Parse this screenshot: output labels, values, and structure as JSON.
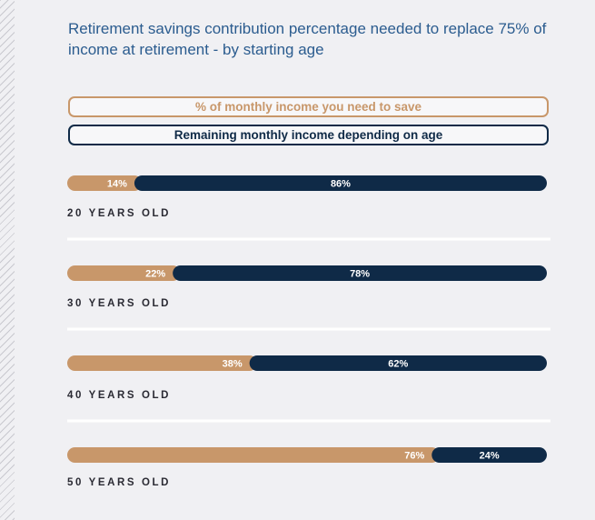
{
  "chart_data": {
    "type": "bar",
    "orientation": "horizontal-stacked-100",
    "title": "Retirement savings contribution percentage needed to replace 75% of income at retirement - by starting age",
    "categories": [
      "20 YEARS OLD",
      "30 YEARS OLD",
      "40 YEARS OLD",
      "50 YEARS OLD"
    ],
    "series": [
      {
        "name": "% of monthly income you need to save",
        "values": [
          14,
          22,
          38,
          76
        ],
        "labels": [
          "14%",
          "22%",
          "38%",
          "76%"
        ],
        "color": "#c8976a"
      },
      {
        "name": "Remaining monthly income depending on age",
        "values": [
          86,
          78,
          62,
          24
        ],
        "labels": [
          "86%",
          "78%",
          "62%",
          "24%"
        ],
        "color": "#0f2a47"
      }
    ],
    "xlim": [
      0,
      100
    ],
    "legend_position": "top"
  }
}
